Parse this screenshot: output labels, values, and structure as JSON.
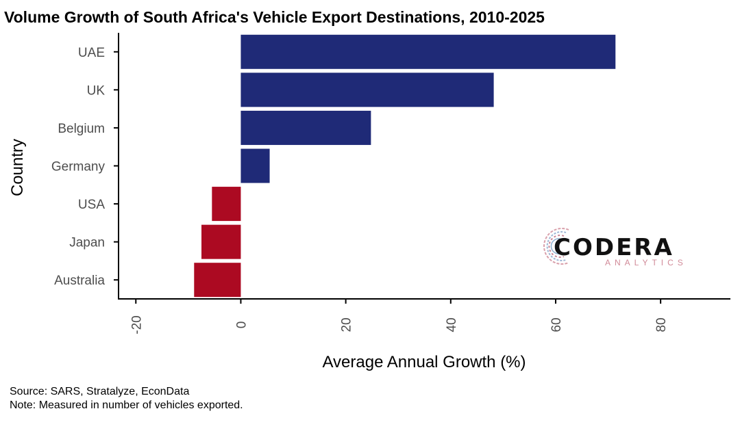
{
  "chart_data": {
    "type": "bar",
    "orientation": "horizontal",
    "title": "Volume Growth of South Africa's Vehicle Export Destinations, 2010-2025",
    "xlabel": "Average Annual Growth (%)",
    "ylabel": "Country",
    "categories": [
      "UAE",
      "UK",
      "Belgium",
      "Germany",
      "USA",
      "Japan",
      "Australia"
    ],
    "values": [
      71.4,
      48.2,
      24.8,
      5.5,
      -5.5,
      -7.5,
      -8.9
    ],
    "xlim": [
      -23.3,
      93.3
    ],
    "xticks": [
      -20,
      0,
      20,
      40,
      60,
      80
    ],
    "xtick_labels": [
      "-20",
      "0",
      "20",
      "40",
      "60",
      "80"
    ],
    "colors": {
      "positive": "#1f2a77",
      "negative": "#ac0a22"
    },
    "grid": false,
    "legend": "none"
  },
  "captions": {
    "source": "Source: SARS, Stratalyze, EconData",
    "note": "Note: Measured in number of vehicles exported."
  },
  "logo": {
    "name": "CODERA",
    "sub": "ANALYTICS"
  }
}
